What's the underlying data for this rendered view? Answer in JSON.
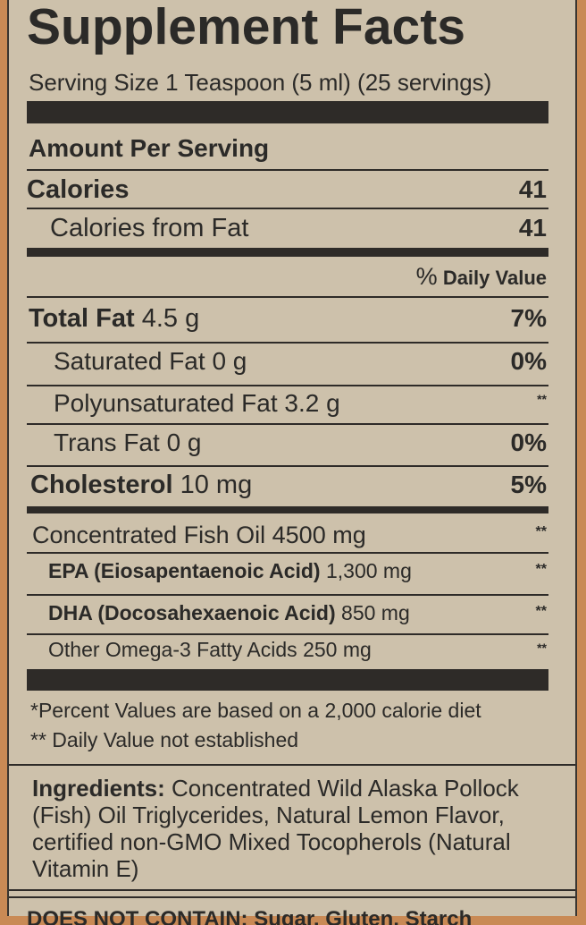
{
  "title": "Supplement Facts",
  "serving": "Serving Size 1 Teaspoon (5 ml) (25 servings)",
  "amount_header": "Amount Per Serving",
  "calories": {
    "label": "Calories",
    "value": "41"
  },
  "calories_fat": {
    "label": "Calories from Fat",
    "value": "41"
  },
  "dv_header": {
    "percent": "%",
    "label": "Daily Value"
  },
  "nutrients": [
    {
      "name": "Total Fat",
      "amount": "4.5 g",
      "dv": "7%"
    },
    {
      "name": "Saturated Fat",
      "amount": "0 g",
      "dv": "0%"
    },
    {
      "name": "Polyunsaturated Fat",
      "amount": "3.2 g",
      "dv": "**"
    },
    {
      "name": "Trans Fat",
      "amount": "0 g",
      "dv": "0%"
    },
    {
      "name": "Cholesterol",
      "amount": "10 mg",
      "dv": "5%"
    }
  ],
  "oils": [
    {
      "name": "Concentrated Fish Oil",
      "amount": "4500 mg",
      "dv": "**"
    },
    {
      "name": "EPA (Eiosapentaenoic Acid)",
      "amount": "1,300 mg",
      "dv": "**"
    },
    {
      "name": "DHA (Docosahexaenoic Acid)",
      "amount": "850 mg",
      "dv": "**"
    },
    {
      "name": "Other Omega-3 Fatty Acids",
      "amount": "250 mg",
      "dv": "**"
    }
  ],
  "footnotes": [
    "*Percent Values are based on a 2,000 calorie diet",
    "** Daily Value not established"
  ],
  "ingredients": {
    "label": "Ingredients:",
    "text": "Concentrated Wild Alaska Pollock (Fish) Oil Triglycerides, Natural Lemon Flavor, certified non-GMO Mixed Tocopherols (Natural Vitamin E)"
  },
  "does_not_contain": "DOES NOT CONTAIN: Sugar, Gluten, Starch"
}
